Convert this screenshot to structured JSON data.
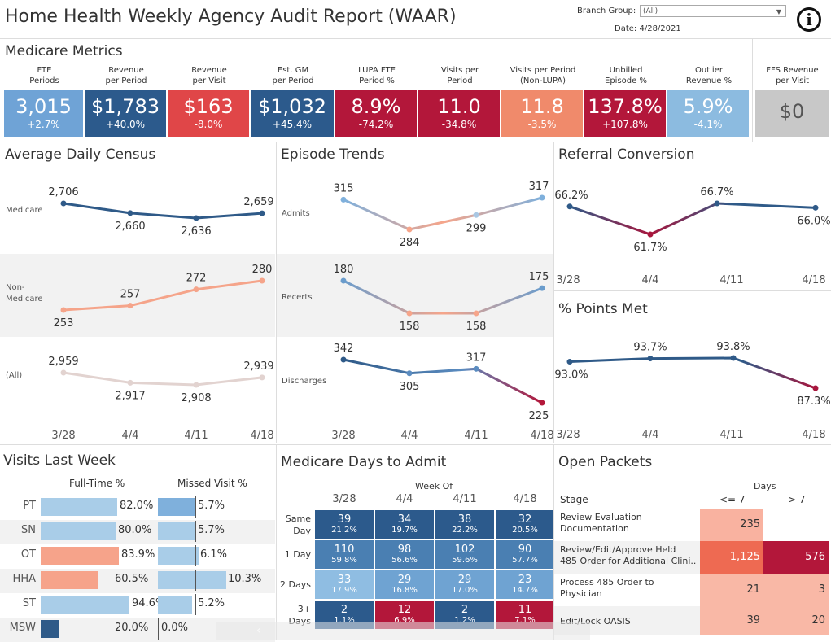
{
  "header": {
    "title": "Home Health Weekly Agency Audit Report (WAAR)",
    "branch_label": "Branch Group:",
    "branch_value": "(All)",
    "date_label": "Date:",
    "date_value": "4/28/2021"
  },
  "medicare_metrics": {
    "title": "Medicare Metrics",
    "kpis": [
      {
        "label1": "FTE",
        "label2": "Periods",
        "value": "3,015",
        "change": "+2.7%",
        "color": "#6fa3d6"
      },
      {
        "label1": "Revenue",
        "label2": "per Period",
        "value": "$1,783",
        "change": "+40.0%",
        "color": "#2c5a8c"
      },
      {
        "label1": "Revenue",
        "label2": "per Visit",
        "value": "$163",
        "change": "-8.0%",
        "color": "#e04648"
      },
      {
        "label1": "Est. GM",
        "label2": "per Period",
        "value": "$1,032",
        "change": "+45.4%",
        "color": "#2c5a8c"
      },
      {
        "label1": "LUPA FTE",
        "label2": "Period %",
        "value": "8.9%",
        "change": "-74.2%",
        "color": "#b3173a"
      },
      {
        "label1": "Visits per",
        "label2": "Period",
        "value": "11.0",
        "change": "-34.8%",
        "color": "#b3173a"
      },
      {
        "label1": "Visits per Period",
        "label2": "(Non-LUPA)",
        "value": "11.8",
        "change": "-3.5%",
        "color": "#f08a6b"
      },
      {
        "label1": "Unbilled",
        "label2": "Episode %",
        "value": "137.8%",
        "change": "+107.8%",
        "color": "#b3173a"
      },
      {
        "label1": "Outlier",
        "label2": "Revenue %",
        "value": "5.9%",
        "change": "-4.1%",
        "color": "#8cbbe0"
      }
    ],
    "ffs": {
      "label1": "FFS Revenue",
      "label2": "per Visit",
      "value": "$0",
      "color": "#c8c8c8"
    }
  },
  "avg_daily_census": {
    "title": "Average Daily Census",
    "x_labels": [
      "3/28",
      "4/4",
      "4/11",
      "4/18"
    ],
    "rows": [
      {
        "label": "Medicare",
        "values": [
          "2,706",
          "2,660",
          "2,636",
          "2,659"
        ],
        "nums": [
          2706,
          2660,
          2636,
          2659
        ],
        "color": "#2f5a88"
      },
      {
        "label": "Non-\nMedicare",
        "label_a": "Non-",
        "label_b": "Medicare",
        "values": [
          "253",
          "257",
          "272",
          "280"
        ],
        "nums": [
          253,
          257,
          272,
          280
        ],
        "color": "#f5a48a"
      },
      {
        "label": "(All)",
        "values": [
          "2,959",
          "2,917",
          "2,908",
          "2,939"
        ],
        "nums": [
          2959,
          2917,
          2908,
          2939
        ],
        "color": "#e2d3d0"
      }
    ]
  },
  "episode_trends": {
    "title": "Episode Trends",
    "x_labels": [
      "3/28",
      "4/4",
      "4/11",
      "4/18"
    ],
    "rows": [
      {
        "label": "Admits",
        "values": [
          "315",
          "284",
          "299",
          "317"
        ],
        "nums": [
          315,
          284,
          299,
          317
        ]
      },
      {
        "label": "Recerts",
        "values": [
          "180",
          "158",
          "158",
          "175"
        ],
        "nums": [
          180,
          158,
          158,
          175
        ]
      },
      {
        "label": "Discharges",
        "values": [
          "342",
          "305",
          "317",
          "225"
        ],
        "nums": [
          342,
          305,
          317,
          225
        ]
      }
    ]
  },
  "referral_conversion": {
    "title": "Referral Conversion",
    "x_labels": [
      "3/28",
      "4/4",
      "4/11",
      "4/18"
    ],
    "values": [
      "66.2%",
      "61.7%",
      "66.7%",
      "66.0%"
    ],
    "nums": [
      66.2,
      61.7,
      66.7,
      66.0
    ]
  },
  "points_met": {
    "title": "% Points Met",
    "x_labels": [
      "3/28",
      "4/4",
      "4/11",
      "4/18"
    ],
    "values": [
      "93.0%",
      "93.7%",
      "93.8%",
      "87.3%"
    ],
    "nums": [
      93.0,
      93.7,
      93.8,
      87.3
    ]
  },
  "visits_last_week": {
    "title": "Visits Last Week",
    "col1": "Full-Time %",
    "col2": "Missed Visit %",
    "rows": [
      {
        "disc": "PT",
        "ft": "82.0%",
        "ftn": 82.0,
        "mv": "5.7%",
        "mvn": 5.7,
        "ftcolor": "#a9cde8"
      },
      {
        "disc": "SN",
        "ft": "80.0%",
        "ftn": 80.0,
        "mv": "5.7%",
        "mvn": 5.7,
        "ftcolor": "#a9cde8"
      },
      {
        "disc": "OT",
        "ft": "83.9%",
        "ftn": 83.9,
        "mv": "6.1%",
        "mvn": 6.1,
        "ftcolor": "#f6a38a"
      },
      {
        "disc": "HHA",
        "ft": "60.5%",
        "ftn": 60.5,
        "mv": "10.3%",
        "mvn": 10.3,
        "ftcolor": "#f6a38a"
      },
      {
        "disc": "ST",
        "ft": "94.6%",
        "ftn": 94.6,
        "mv": "5.2%",
        "mvn": 5.2,
        "ftcolor": "#a9cde8"
      },
      {
        "disc": "MSW",
        "ft": "20.0%",
        "ftn": 20.0,
        "mv": "0.0%",
        "mvn": 0.0,
        "ftcolor": "#2f5a88"
      }
    ]
  },
  "days_to_admit": {
    "title": "Medicare Days to Admit",
    "week_of": "Week Of",
    "weeks": [
      "3/28",
      "4/4",
      "4/11",
      "4/18"
    ],
    "rows": [
      {
        "label_a": "Same",
        "label_b": "Day",
        "cells": [
          {
            "n": "39",
            "p": "21.2%",
            "c": "#2c5a8c"
          },
          {
            "n": "34",
            "p": "19.7%",
            "c": "#2c5a8c"
          },
          {
            "n": "38",
            "p": "22.2%",
            "c": "#2c5a8c"
          },
          {
            "n": "32",
            "p": "20.5%",
            "c": "#2c5a8c"
          }
        ]
      },
      {
        "label_a": "1 Day",
        "label_b": "",
        "cells": [
          {
            "n": "110",
            "p": "59.8%",
            "c": "#4a7fb2"
          },
          {
            "n": "98",
            "p": "56.6%",
            "c": "#4a7fb2"
          },
          {
            "n": "102",
            "p": "59.6%",
            "c": "#4a7fb2"
          },
          {
            "n": "90",
            "p": "57.7%",
            "c": "#4a7fb2"
          }
        ]
      },
      {
        "label_a": "2 Days",
        "label_b": "",
        "cells": [
          {
            "n": "33",
            "p": "17.9%",
            "c": "#8fbde2"
          },
          {
            "n": "29",
            "p": "16.8%",
            "c": "#6fa3d2"
          },
          {
            "n": "29",
            "p": "17.0%",
            "c": "#6fa3d2"
          },
          {
            "n": "23",
            "p": "14.7%",
            "c": "#6fa3d2"
          }
        ]
      },
      {
        "label_a": "3+",
        "label_b": "Days",
        "cells": [
          {
            "n": "2",
            "p": "1.1%",
            "c": "#2c5a8c"
          },
          {
            "n": "12",
            "p": "6.9%",
            "c": "#b3173a"
          },
          {
            "n": "2",
            "p": "1.2%",
            "c": "#2c5a8c"
          },
          {
            "n": "11",
            "p": "7.1%",
            "c": "#b3173a"
          }
        ]
      }
    ]
  },
  "open_packets": {
    "title": "Open Packets",
    "days": "Days",
    "stage": "Stage",
    "col_le7": "<= 7",
    "col_gt7": "> 7",
    "rows": [
      {
        "a": "Review Evaluation",
        "b": "Documentation",
        "le7": "235",
        "gt7": "",
        "c1": "#f9b2a0",
        "c2": ""
      },
      {
        "a": "Review/Edit/Approve Held",
        "b": "485 Order for Additional Clini..",
        "le7": "1,125",
        "gt7": "576",
        "c1": "#ee6a52",
        "c2": "#b3173a"
      },
      {
        "a": "Process 485 Order to",
        "b": "Physician",
        "le7": "21",
        "gt7": "3",
        "c1": "#f9b8a6",
        "c2": "#f9b8a6"
      },
      {
        "a": "Edit/Lock OASIS",
        "b": "",
        "le7": "39",
        "gt7": "20",
        "c1": "#f9b8a6",
        "c2": "#f9b8a6"
      }
    ]
  }
}
